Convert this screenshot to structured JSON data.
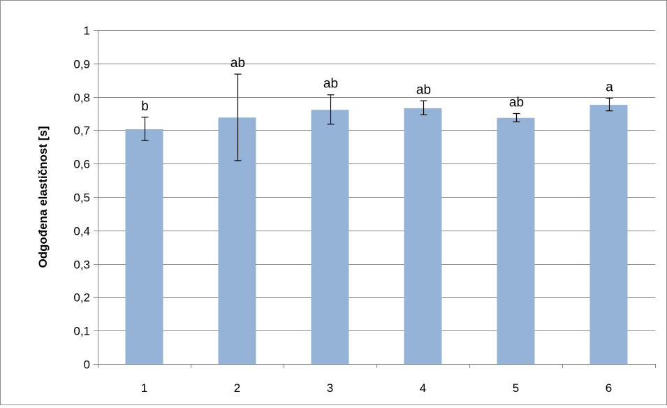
{
  "chart_data": {
    "type": "bar",
    "categories": [
      "1",
      "2",
      "3",
      "4",
      "5",
      "6"
    ],
    "values": [
      0.703,
      0.738,
      0.761,
      0.766,
      0.737,
      0.776
    ],
    "error_low": [
      0.669,
      0.609,
      0.718,
      0.746,
      0.725,
      0.758
    ],
    "error_high": [
      0.739,
      0.868,
      0.806,
      0.788,
      0.75,
      0.796
    ],
    "significance_labels": [
      "b",
      "ab",
      "ab",
      "ab",
      "ab",
      "a"
    ],
    "title": "",
    "xlabel": "",
    "ylabel": "Odgođena elastičnost [s]",
    "ylim": [
      0,
      1
    ],
    "yticks": [
      0,
      0.1,
      0.2,
      0.3,
      0.4,
      0.5,
      0.6,
      0.7,
      0.8,
      0.9,
      1
    ],
    "ytick_labels": [
      "0",
      "0,1",
      "0,2",
      "0,3",
      "0,4",
      "0,5",
      "0,6",
      "0,7",
      "0,8",
      "0,9",
      "1"
    ],
    "grid": true,
    "legend": "none",
    "colors": {
      "bar": "#95b3d7",
      "grid": "#868686",
      "axis": "#868686",
      "error_bar": "#000000"
    }
  }
}
